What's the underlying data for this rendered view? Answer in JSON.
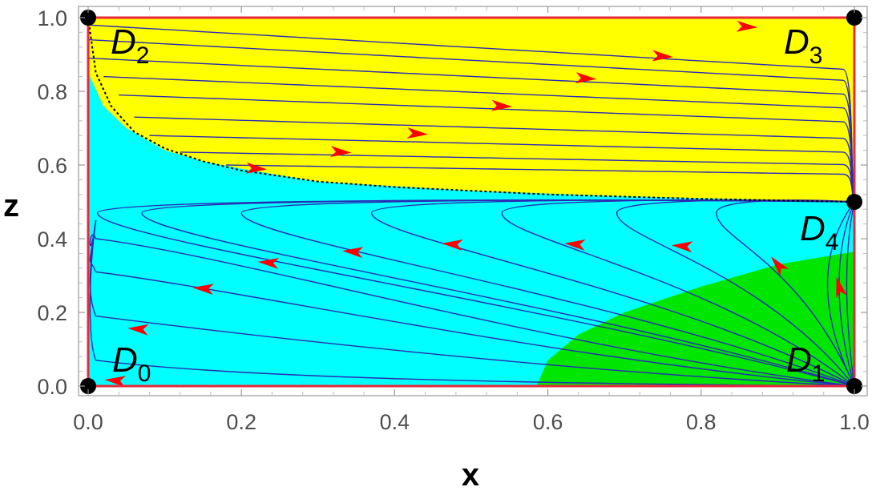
{
  "chart_data": {
    "type": "stream",
    "title": "",
    "xlabel": "x",
    "ylabel": "z",
    "xlim": [
      0,
      1
    ],
    "ylim": [
      0,
      1
    ],
    "x_ticks": [
      "0.0",
      "0.2",
      "0.4",
      "0.6",
      "0.8",
      "1.0"
    ],
    "y_ticks": [
      "0.0",
      "0.2",
      "0.4",
      "0.6",
      "0.8",
      "1.0"
    ],
    "x_tick_values": [
      0,
      0.2,
      0.4,
      0.6,
      0.8,
      1.0
    ],
    "y_tick_values": [
      0,
      0.2,
      0.4,
      0.6,
      0.8,
      1.0
    ],
    "grid": false,
    "colors": {
      "region_upper": "#ffff00",
      "region_middle": "#00ffff",
      "region_lower": "#00e600",
      "streamline": "#2a2ab5",
      "arrow": "#ff0000",
      "boundary": "#e8283c",
      "separatrix": "#000000",
      "critical_point": "#000000"
    },
    "critical_points": [
      {
        "name": "D",
        "sub": "0",
        "x": 0.0,
        "z": 0.0
      },
      {
        "name": "D",
        "sub": "1",
        "x": 1.0,
        "z": 0.0
      },
      {
        "name": "D",
        "sub": "2",
        "x": 0.0,
        "z": 1.0
      },
      {
        "name": "D",
        "sub": "3",
        "x": 1.0,
        "z": 1.0
      },
      {
        "name": "D",
        "sub": "4",
        "x": 1.0,
        "z": 0.5
      }
    ],
    "regions": [
      {
        "name": "upper",
        "color": "#ffff00",
        "boundary": [
          [
            0.0,
            0.85
          ],
          [
            0.02,
            0.76
          ],
          [
            0.05,
            0.7
          ],
          [
            0.1,
            0.64
          ],
          [
            0.15,
            0.61
          ],
          [
            0.2,
            0.59
          ],
          [
            0.3,
            0.555
          ],
          [
            0.5,
            0.53
          ],
          [
            0.7,
            0.515
          ],
          [
            0.9,
            0.505
          ],
          [
            1.0,
            0.5
          ]
        ]
      },
      {
        "name": "lower",
        "color": "#00e600",
        "boundary": [
          [
            0.585,
            0.0
          ],
          [
            0.6,
            0.07
          ],
          [
            0.64,
            0.14
          ],
          [
            0.7,
            0.2
          ],
          [
            0.8,
            0.27
          ],
          [
            0.9,
            0.33
          ],
          [
            1.0,
            0.365
          ]
        ]
      }
    ],
    "separatrix": [
      [
        0.0,
        1.0
      ],
      [
        0.01,
        0.85
      ],
      [
        0.03,
        0.76
      ],
      [
        0.06,
        0.69
      ],
      [
        0.1,
        0.645
      ],
      [
        0.15,
        0.61
      ],
      [
        0.2,
        0.585
      ],
      [
        0.3,
        0.555
      ],
      [
        0.4,
        0.54
      ],
      [
        0.6,
        0.52
      ],
      [
        0.8,
        0.508
      ],
      [
        0.95,
        0.502
      ],
      [
        1.0,
        0.5
      ]
    ],
    "streamlines_upper": [
      {
        "z0": 0.98,
        "x0": 0.0
      },
      {
        "z0": 0.94,
        "x0": 0.0
      },
      {
        "z0": 0.89,
        "x0": 0.0
      },
      {
        "z0": 0.84,
        "x0": 0.02
      },
      {
        "z0": 0.79,
        "x0": 0.04
      },
      {
        "z0": 0.73,
        "x0": 0.06
      },
      {
        "z0": 0.68,
        "x0": 0.08
      },
      {
        "z0": 0.635,
        "x0": 0.12
      },
      {
        "z0": 0.6,
        "x0": 0.18
      }
    ],
    "streamlines_middle": [
      {
        "turn_x": 0.012,
        "z_turn": 0.5
      },
      {
        "turn_x": 0.07,
        "z_turn": 0.47
      },
      {
        "turn_x": 0.2,
        "z_turn": 0.47
      },
      {
        "turn_x": 0.37,
        "z_turn": 0.47
      },
      {
        "turn_x": 0.54,
        "z_turn": 0.47
      },
      {
        "turn_x": 0.69,
        "z_turn": 0.47
      },
      {
        "turn_x": 0.82,
        "z_turn": 0.47
      }
    ],
    "streamlines_lower": [
      {
        "z_end": 0.02
      },
      {
        "z_end": 0.14
      },
      {
        "z_end": 0.26
      },
      {
        "z_end": 0.35
      }
    ],
    "arrows_upper": [
      [
        0.86,
        0.975
      ],
      [
        0.75,
        0.895
      ],
      [
        0.65,
        0.835
      ],
      [
        0.54,
        0.76
      ],
      [
        0.43,
        0.685
      ],
      [
        0.33,
        0.635
      ],
      [
        0.22,
        0.59
      ]
    ],
    "arrows_middle": [
      [
        0.475,
        0.385
      ],
      [
        0.635,
        0.385
      ],
      [
        0.775,
        0.38
      ],
      [
        0.345,
        0.365
      ],
      [
        0.235,
        0.335
      ],
      [
        0.15,
        0.265
      ],
      [
        0.065,
        0.155
      ],
      [
        0.035,
        0.015
      ]
    ],
    "arrows_rising": [
      [
        0.9,
        0.33
      ],
      [
        0.98,
        0.27
      ]
    ]
  }
}
